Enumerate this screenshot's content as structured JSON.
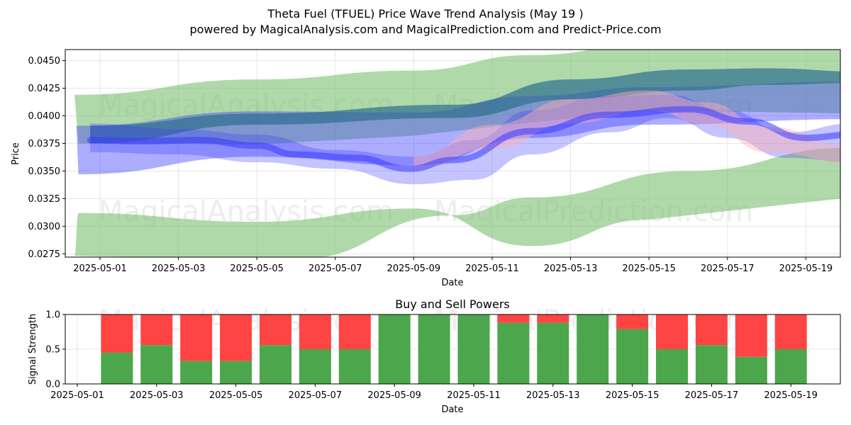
{
  "header": {
    "title": "Theta Fuel (TFUEL) Price Wave Trend Analysis (May 19 )",
    "subtitle": "powered by MagicalAnalysis.com and MagicalPrediction.com and Predict-Price.com"
  },
  "watermarks": [
    "MagicalAnalysis.com",
    "MagicalPrediction.com"
  ],
  "colors": {
    "green_band": "#7cbf72",
    "blue_band": "#3b3bff",
    "dark_band": "#2e6e8e",
    "pink_band": "#ffb0b0",
    "buy": "#4ca64c",
    "sell": "#ff4444",
    "grid": "#e6e6e6"
  },
  "chart_data": [
    {
      "type": "area",
      "title": "",
      "xlabel": "Date",
      "ylabel": "Price",
      "xlim": [
        "2025-04-30.3",
        "2025-05-20.0"
      ],
      "ylim": [
        0.0272,
        0.046
      ],
      "x_ticks": [
        "2025-05-01",
        "2025-05-03",
        "2025-05-05",
        "2025-05-07",
        "2025-05-09",
        "2025-05-11",
        "2025-05-13",
        "2025-05-15",
        "2025-05-17",
        "2025-05-19"
      ],
      "y_ticks": [
        "0.0275",
        "0.0300",
        "0.0325",
        "0.0350",
        "0.0375",
        "0.0400",
        "0.0425",
        "0.0450"
      ],
      "grid": true,
      "series": [
        {
          "style": "green-band",
          "upper": [
            [
              -0.65,
              0.0419
            ],
            [
              4,
              0.0433
            ],
            [
              8,
              0.0441
            ],
            [
              11,
              0.0455
            ],
            [
              14,
              0.0465
            ],
            [
              19.4,
              0.0466
            ]
          ],
          "lower": [
            [
              -0.65,
              0.0273
            ],
            [
              -0.55,
              0.0312
            ],
            [
              4,
              0.0304
            ],
            [
              8,
              0.0316
            ],
            [
              11,
              0.0282
            ],
            [
              14,
              0.0306
            ],
            [
              19.4,
              0.0327
            ],
            [
              19.1,
              0.0371
            ],
            [
              15,
              0.035
            ],
            [
              11,
              0.0326
            ],
            [
              9,
              0.031
            ],
            [
              5,
              0.027
            ]
          ]
        },
        {
          "style": "blue-band",
          "upper": [
            [
              -0.6,
              0.0391
            ],
            [
              4,
              0.0404
            ],
            [
              8,
              0.0403
            ],
            [
              11,
              0.0418
            ],
            [
              14,
              0.0426
            ],
            [
              19.3,
              0.0431
            ]
          ],
          "lower": [
            [
              -0.55,
              0.0347
            ],
            [
              4,
              0.0363
            ],
            [
              8,
              0.0355
            ],
            [
              11,
              0.038
            ],
            [
              14,
              0.0392
            ],
            [
              19.3,
              0.0397
            ]
          ]
        },
        {
          "style": "dark-band",
          "upper": [
            [
              -0.25,
              0.0391
            ],
            [
              4,
              0.0402
            ],
            [
              9,
              0.041
            ],
            [
              12,
              0.0433
            ],
            [
              15,
              0.0442
            ],
            [
              17,
              0.0443
            ],
            [
              19.5,
              0.044
            ]
          ],
          "lower": [
            [
              -0.25,
              0.0375
            ],
            [
              4,
              0.0392
            ],
            [
              9,
              0.0398
            ],
            [
              12,
              0.0415
            ],
            [
              15,
              0.0423
            ],
            [
              17,
              0.0428
            ],
            [
              19.5,
              0.043
            ]
          ]
        },
        {
          "style": "blue-wave",
          "upper": [
            [
              -0.25,
              0.0393
            ],
            [
              2,
              0.0388
            ],
            [
              4,
              0.0383
            ],
            [
              6,
              0.0369
            ],
            [
              8,
              0.0363
            ],
            [
              9.5,
              0.0378
            ],
            [
              11,
              0.0405
            ],
            [
              13,
              0.0418
            ],
            [
              14.5,
              0.0419
            ],
            [
              16,
              0.0405
            ],
            [
              17.5,
              0.0385
            ],
            [
              19.2,
              0.0393
            ]
          ],
          "lower": [
            [
              -0.25,
              0.0367
            ],
            [
              2,
              0.0365
            ],
            [
              4,
              0.0358
            ],
            [
              6,
              0.0352
            ],
            [
              8,
              0.0338
            ],
            [
              9.5,
              0.0342
            ],
            [
              11,
              0.0365
            ],
            [
              13,
              0.0385
            ],
            [
              14.5,
              0.0398
            ],
            [
              16,
              0.038
            ],
            [
              17.5,
              0.0362
            ],
            [
              19.2,
              0.0358
            ]
          ]
        },
        {
          "style": "pink-band",
          "upper": [
            [
              8,
              0.0363
            ],
            [
              10,
              0.0392
            ],
            [
              12,
              0.0415
            ],
            [
              14,
              0.0423
            ],
            [
              15.5,
              0.0412
            ],
            [
              17,
              0.039
            ],
            [
              19.2,
              0.0372
            ]
          ],
          "lower": [
            [
              8,
              0.0352
            ],
            [
              10,
              0.037
            ],
            [
              12,
              0.0393
            ],
            [
              14,
              0.0405
            ],
            [
              15.5,
              0.0392
            ],
            [
              17,
              0.0367
            ],
            [
              19.2,
              0.0357
            ]
          ]
        },
        {
          "style": "main-line",
          "values": [
            [
              -0.25,
              0.0378
            ],
            [
              1,
              0.0377
            ],
            [
              2.5,
              0.0378
            ],
            [
              4,
              0.0373
            ],
            [
              5,
              0.0365
            ],
            [
              6.5,
              0.0362
            ],
            [
              7.9,
              0.0352
            ],
            [
              9,
              0.036
            ],
            [
              11,
              0.0386
            ],
            [
              13,
              0.0401
            ],
            [
              15,
              0.0406
            ],
            [
              16.5,
              0.0395
            ],
            [
              18,
              0.038
            ],
            [
              19.2,
              0.0383
            ]
          ]
        }
      ]
    },
    {
      "type": "bar",
      "title": "Buy and Sell Powers",
      "xlabel": "Date",
      "ylabel": "Signal Strength",
      "ylim": [
        0,
        1.0
      ],
      "y_ticks": [
        "0.0",
        "0.5",
        "1.0"
      ],
      "x_ticks": [
        "2025-05-01",
        "2025-05-03",
        "2025-05-05",
        "2025-05-07",
        "2025-05-09",
        "2025-05-11",
        "2025-05-13",
        "2025-05-15",
        "2025-05-17",
        "2025-05-19"
      ],
      "categories": [
        "2025-05-02",
        "2025-05-03",
        "2025-05-04",
        "2025-05-05",
        "2025-05-06",
        "2025-05-07",
        "2025-05-08",
        "2025-05-09",
        "2025-05-10",
        "2025-05-11",
        "2025-05-12",
        "2025-05-13",
        "2025-05-14",
        "2025-05-15",
        "2025-05-16",
        "2025-05-17",
        "2025-05-18",
        "2025-05-19"
      ],
      "series": [
        {
          "name": "Buy",
          "values": [
            0.45,
            0.56,
            0.33,
            0.33,
            0.56,
            0.5,
            0.5,
            1.0,
            1.0,
            1.0,
            0.88,
            0.88,
            1.0,
            0.79,
            0.5,
            0.56,
            0.39,
            0.5
          ]
        },
        {
          "name": "Sell",
          "values": [
            0.55,
            0.44,
            0.67,
            0.67,
            0.44,
            0.5,
            0.5,
            0.0,
            0.0,
            0.0,
            0.12,
            0.12,
            0.0,
            0.21,
            0.5,
            0.44,
            0.61,
            0.5
          ]
        }
      ]
    }
  ]
}
